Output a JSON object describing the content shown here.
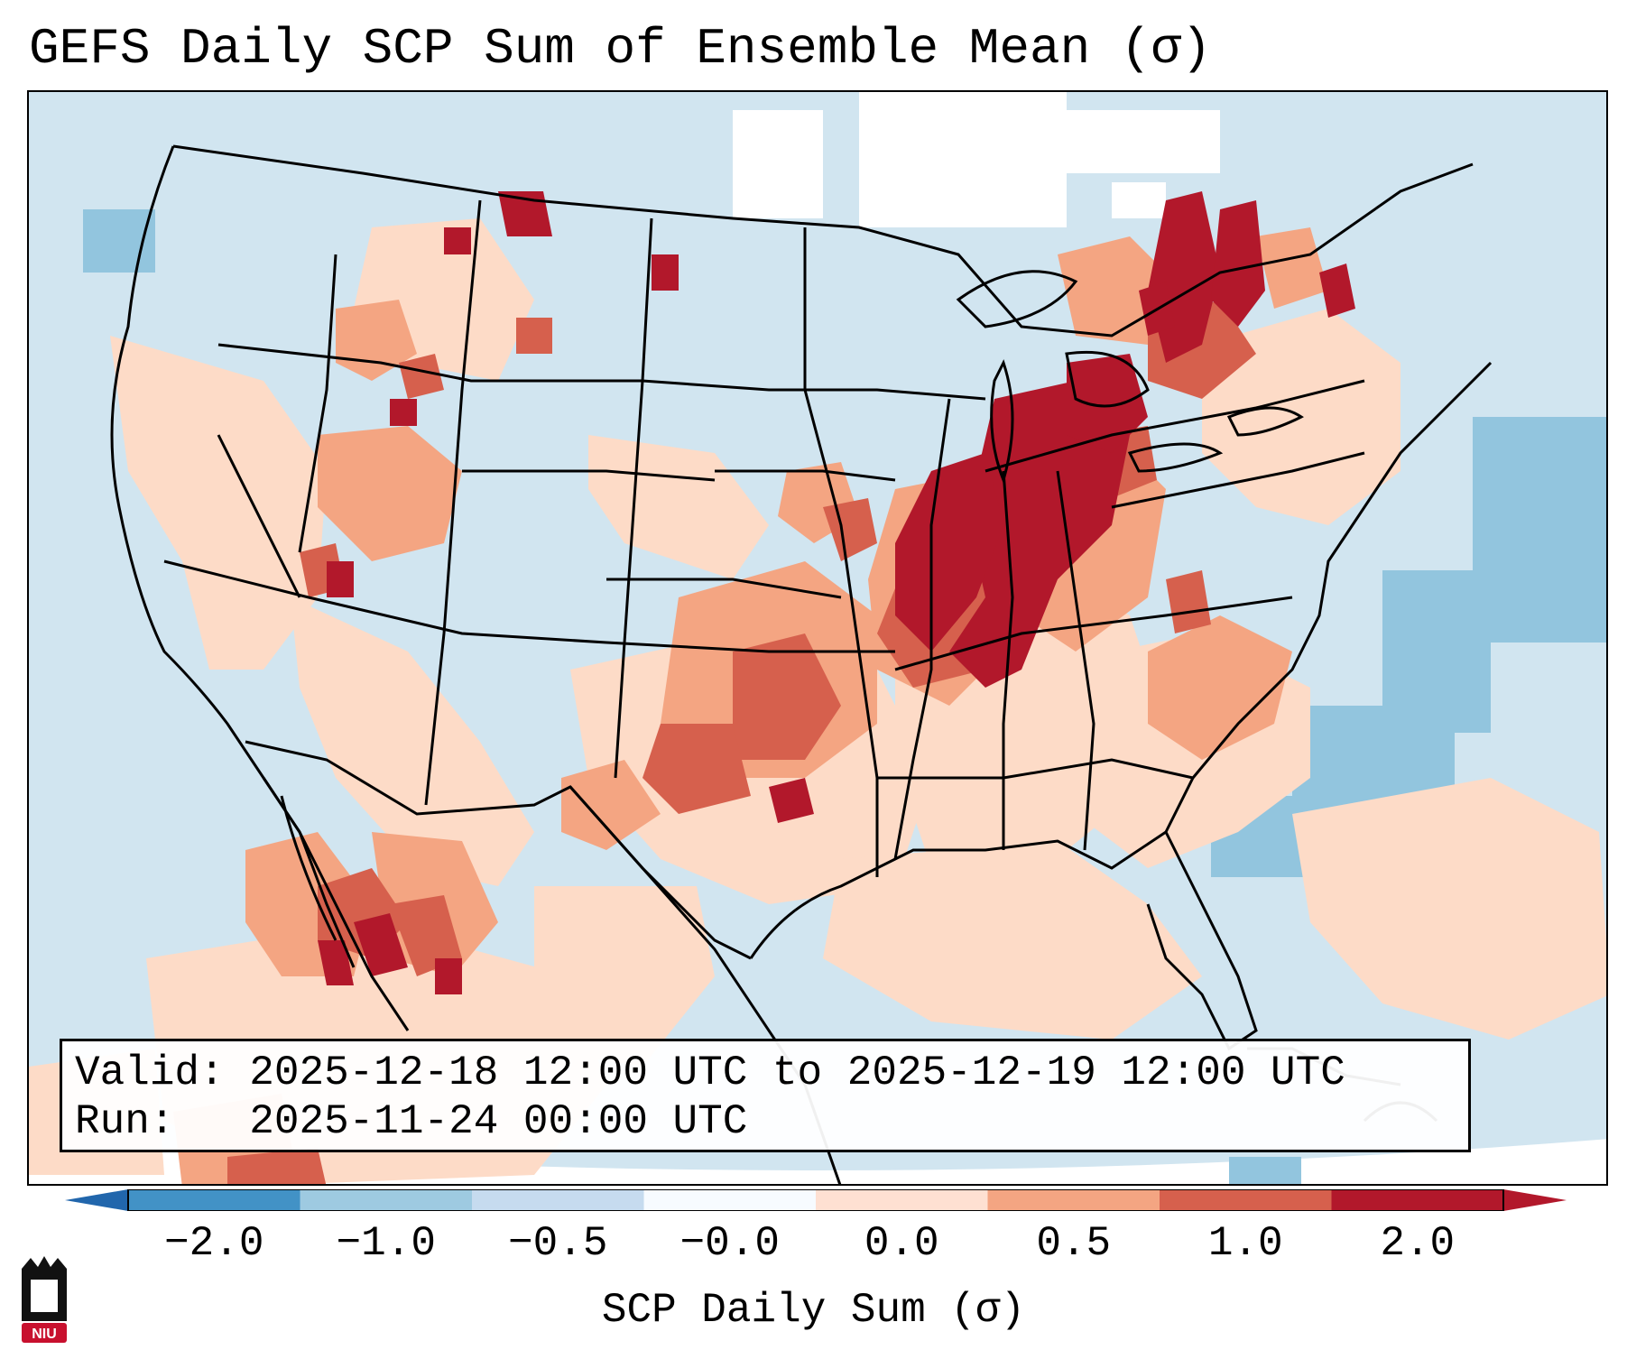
{
  "title": "GEFS Daily SCP Sum of Ensemble Mean (σ)",
  "info": {
    "valid_label": "Valid:",
    "valid_value": "2025-12-18 12:00 UTC to 2025-12-19 12:00 UTC",
    "run_label": "Run:",
    "run_value": "2025-11-24 00:00 UTC"
  },
  "colorbar": {
    "label": "SCP Daily Sum (σ)",
    "ticks": [
      "−2.0",
      "−1.0",
      "−0.5",
      "−0.0",
      "0.0",
      "0.5",
      "1.0",
      "2.0"
    ],
    "colors": [
      "#4292c6",
      "#9ecae1",
      "#c6dbef",
      "#f7fbff",
      "#fee0d2",
      "#f4a582",
      "#d6604d",
      "#b2182b"
    ]
  },
  "logo": {
    "text": "NIU",
    "color": "#c8102e"
  },
  "colors": {
    "background_blue": "#d1e5f0",
    "blue_medium": "#92c5de",
    "pink_light": "#fddbc7",
    "salmon": "#f4a582",
    "red": "#d6604d",
    "dark_red": "#b2182b",
    "white": "#ffffff"
  }
}
